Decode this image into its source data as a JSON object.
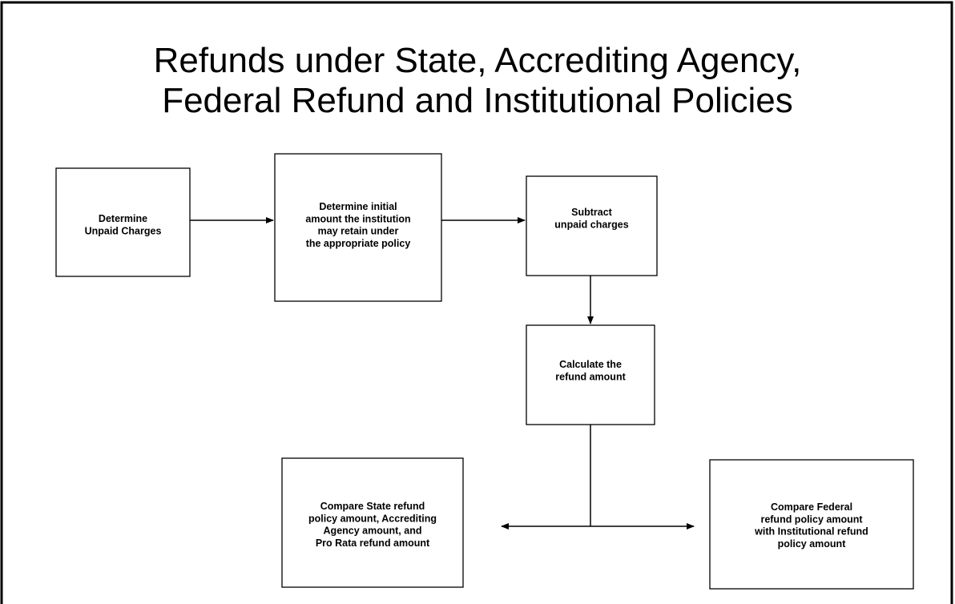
{
  "title": [
    "Refunds under State, Accrediting Agency,",
    "Federal Refund and Institutional Policies"
  ],
  "nodes": [
    {
      "label": [
        "Determine",
        "Unpaid Charges"
      ]
    },
    {
      "label": [
        "Determine initial",
        "amount the institution",
        "may retain under",
        "the appropriate policy"
      ]
    },
    {
      "label": [
        "Subtract",
        "unpaid charges"
      ]
    },
    {
      "label": [
        "Calculate the",
        "refund amount"
      ]
    },
    {
      "label": [
        "Compare State refund",
        "policy amount, Accrediting",
        "Agency amount, and",
        "Pro Rata refund amount"
      ]
    },
    {
      "label": [
        "Compare Federal",
        "refund policy amount",
        "with Institutional refund",
        "policy amount"
      ]
    }
  ]
}
